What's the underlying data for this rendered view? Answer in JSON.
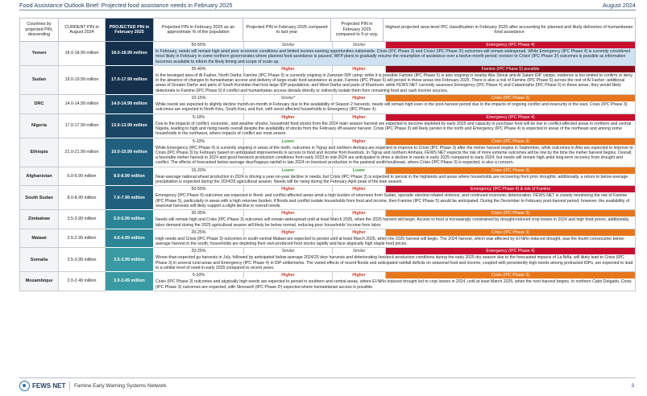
{
  "header": {
    "title": "Food Assistance Outlook Brief: Projected food assistance needs in February 2025",
    "date": "August 2024"
  },
  "columns": [
    "Countries by projected PIN, descending",
    "CURRENT PIN in August 2024",
    "PROJECTED PIN in February 2025",
    "Projected PIN in February 2025 as an approximate % of the population",
    "Projected PIN in February 2025 compared to last year",
    "Projected PIN in February 2025 compared to 5-yr avg.",
    "Highest projected area-level IPC classification in February 2025 after accounting for planned and likely deliveries of humanitarian food assistance"
  ],
  "rows": [
    {
      "country": "Yemen",
      "current": "18.0-18.99 million",
      "projected": "18.0-18.99 million",
      "pct": "50-55%",
      "vs_last": "Similar",
      "vs_last_class": "similar",
      "vs_5yr": "Similar",
      "vs_5yr_class": "similar",
      "ipc": "Emergency (IPC Phase 4)",
      "ipc_class": "ipc-e",
      "highlight": true,
      "narrative": "In February, needs will remain high amid poor economic conditions and limited income-earning opportunities nationwide. Crisis (IPC Phase 3) and Crisis! (IPC Phase 3!) outcomes will remain widespread. While Emergency (IPC Phase 4) is currently considered most likely in February in some northern governorates where planned food assistance is paused, WFP plans to gradually resume the resumption of assistance over a twelve-month period; revision to Crisis! (IPC Phase 3!) outcomes is possible as information becomes available to inform the likely timing and scope of scale-up."
    },
    {
      "country": "Sudan",
      "current": "19.0-19.99 million",
      "projected": "17.0-17.99 million",
      "pct": "35-40%",
      "vs_last": "Higher",
      "vs_last_class": "higher",
      "vs_5yr": "Higher",
      "vs_5yr_class": "higher",
      "ipc": "Famine (IPC Phase 5) possible",
      "ipc_class": "ipc-f",
      "highlight": false,
      "narrative": "In the besieged area of Al Fasher, North Darfur, Famine (IPC Phase 5) is currently ongoing in Zamzam IDP camp; while it is possible Famine (IPC Phase 5) is also ongoing in nearby Abu Shouk and Al Salam IDP camps, evidence is too limited to confirm or deny. In the absence of changes to humanitarian access and delivery of large-scale food assistance at scale, Famine (IPC Phase 5) will persist in these areas into February 2025. There is also a risk of Famine (IPC Phase 5) across the rest of Al Fasher; additional areas of Greater Darfur and parts of South Kordofan that host large IDP populations; and West Darfur and parts of Khartoum; while FEWS NET currently assesses Emergency (IPC Phase 4) and Catastrophe (IPC Phase 5) in these areas, they would likely deteriorate to Famine (IPC Phase 5) if conflict and humanitarian access denials directly or indirectly isolate them from remaining food and cash income sources."
    },
    {
      "country": "DRC",
      "current": "14.0-14.99 million",
      "projected": "14.0-14.99 million",
      "pct": "10-15%",
      "vs_last": "Similar*",
      "vs_last_class": "similar",
      "vs_5yr": "Higher",
      "vs_5yr_class": "higher",
      "ipc": "Crisis (IPC Phase 3)",
      "ipc_class": "ipc-c",
      "highlight": false,
      "narrative": "While needs are expected to slightly decline month-on-month in February due to the availability of Season 2 harvests, needs will remain high even in the post-harvest period due to the impacts of ongoing conflict and insecurity in the east. Crisis (IPC Phase 3) outcomes are expected in North Kivu, South Kivu, and Ituri, with worst affected households in Emergency (IPC Phase 4)."
    },
    {
      "country": "Nigeria",
      "current": "17.0-17.99 million",
      "projected": "13.0-13.99 million",
      "pct": "5-10%",
      "vs_last": "Higher",
      "vs_last_class": "higher",
      "vs_5yr": "Higher",
      "vs_5yr_class": "higher",
      "ipc": "Emergency (IPC Phase 4)",
      "ipc_class": "ipc-e",
      "highlight": false,
      "narrative": "Due to the impacts of conflict, economic, and weather shocks, household food stocks from the 2024 main season harvest are expected to become depleted by early 2025 and capacity to purchase food will be low in conflict-affected areas in northern and central Nigeria, leading to high and rising needs overall despite the availability of stocks from the February off-season harvest. Crisis (IPC Phase 3) will likely persist in the north and Emergency (IPC Phase 4) is expected in areas of the northeast and among some households in the northwest, where impacts of conflict are most severe."
    },
    {
      "country": "Ethiopia",
      "current": "21.0-21.99 million",
      "projected": "10.0-10.99 million",
      "pct": "5-10%",
      "vs_last": "Lower",
      "vs_last_class": "lower",
      "vs_5yr": "Higher",
      "vs_5yr_class": "higher",
      "ipc": "Crisis (IPC Phase 3)",
      "ipc_class": "ipc-c",
      "highlight": false,
      "narrative": "While Emergency (IPC Phase 4) is currently ongoing in areas of the north, outcomes in Tigray and northern Amhara are expected to improve to Crisis (IPC Phase 3) after the meher harvest begins in September, while outcomes in Afar are expected to improve to Crisis (IPC Phase 3) by February based on anticipated improvements in access to food and income from livestock. In Tigray and northern Amhara, FEWS NET expects the risk of more extreme outcomes will be low by the time the meher harvest begins. Overall, a favorable meher harvest in 2024 and good livestock production conditions from early 2023 to mid-2024 are anticipated to drive a decline in needs in early 2025 compared to early 2024, but needs will remain high amid long-term recovery from drought and conflict. The effects of forecasted below-average deyr/hageya rainfall in late 2024 on livestock production in the pastoral south/southeast, where Crisis (IPC Phase 3) is expected, is also a concern."
    },
    {
      "country": "Afghanistan",
      "current": "6.0-6.99 million",
      "projected": "8.0-8.99 million",
      "pct": "15-20%",
      "vs_last": "Lower",
      "vs_last_class": "lower",
      "vs_5yr": "Lower",
      "vs_5yr_class": "lower",
      "ipc": "Crisis (IPC Phase 3)",
      "ipc_class": "ipc-c",
      "highlight": false,
      "narrative": "Near-average national wheat production in 2024 is driving a year-on-year decline in needs, but Crisis (IPC Phase 3) is expected to persist in the highlands and areas where households are recovering from prior droughts; additionally, a return to below-average precipitation is expected during the 2024/25 agricultural season. Needs will be rising during the February-April peak of the lean season."
    },
    {
      "country": "South Sudan",
      "current": "8.0-8.99 million",
      "projected": "7.0-7.99 million",
      "pct": "50-55%",
      "vs_last": "Higher",
      "vs_last_class": "higher",
      "vs_5yr": "Higher",
      "vs_5yr_class": "higher",
      "ipc": "Emergency (IPC Phase 4) & risk of Famine",
      "ipc_class": "ipc-e",
      "highlight": false,
      "narrative": "Emergency (IPC Phase 4) outcomes are expected in flood- and conflict-affected areas amid a high burden of returnees from Sudan, sporadic election-related violence, and continued economic deterioration. FEWS NET is closely monitoring the risk of Famine (IPC Phase 5), particularly in areas with a high returnee burden; if floods and conflict isolate households from food and income, then Famine (IPC Phase 5) would be anticipated. During the December to February post-harvest period, however, the availability of seasonal harvests will likely support a slight decline in overall needs."
    },
    {
      "country": "Zimbabwe",
      "current": "3.5-3.99 million",
      "projected": "5.0-5.99 million",
      "pct": "30-35%",
      "vs_last": "Higher",
      "vs_last_class": "higher",
      "vs_5yr": "Higher",
      "vs_5yr_class": "higher",
      "ipc": "Crisis (IPC Phase 3)",
      "ipc_class": "ipc-c",
      "highlight": false,
      "narrative": "Needs will remain high and Crisis (IPC Phase 3) outcomes will remain widespread until at least March 2025, when the 2025 harvest will begin. Access to food is increasingly constrained by drought-induced crop losses in 2024 and high food prices; additionally, labor demand during the 2025 agricultural season will likely be below normal, reducing poor households' income from labor."
    },
    {
      "country": "Malawi",
      "current": "2.5-2.99 million",
      "projected": "4.0-4.99 million",
      "pct": "20-25%",
      "vs_last": "Higher",
      "vs_last_class": "higher",
      "vs_5yr": "Higher",
      "vs_5yr_class": "higher",
      "ipc": "Crisis (IPC Phase 3)",
      "ipc_class": "ipc-c",
      "highlight": false,
      "narrative": "High needs and Crisis (IPC Phase 3) outcomes in south-central Malawi are expected to persist until at least March 2025, when the 2025 harvest will begin. The 2024 harvest, which was affected by El Niño-induced drought, was the fourth consecutive below-average harvest in the south; households are depleting their own-produced food stocks rapidly and face atypically high staple food prices."
    },
    {
      "country": "Somalia",
      "current": "3.5-3.99 million",
      "projected": "3.5-3.99 million",
      "pct": "20-25%",
      "vs_last": "Similar",
      "vs_last_class": "similar",
      "vs_5yr": "Similar",
      "vs_5yr_class": "similar",
      "ipc": "Emergency (IPC Phase 4)",
      "ipc_class": "ipc-e",
      "highlight": false,
      "narrative": "Worse-than-expected gu harvests in July, followed by anticipated below-average 2024/25 deyr harvests and deteriorating livestock production conditions during the early 2025 dry season due to the forecasted impacts of La Niña, will likely lead to Crisis (IPC Phase 3) in several rural areas and Emergency (IPC Phase 4) in IDP settlements. The varied effects of recent floods and anticipated rainfall deficits on seasonal food and income, coupled with persistently high needs among protracted IDPs, are expected to lead to a similar level of need in early 2025 compared to recent years."
    },
    {
      "country": "Mozambique",
      "current": "2.0-2.49 million",
      "projected": "3.0-3.49 million",
      "pct": "5-10%",
      "vs_last": "Higher",
      "vs_last_class": "higher",
      "vs_5yr": "Higher",
      "vs_5yr_class": "higher",
      "ipc": "Crisis (IPC Phase 3)",
      "ipc_class": "ipc-c",
      "highlight": false,
      "narrative": "Crisis (IPC Phase 3) outcomes and atypically high needs are expected to persist in southern and central areas, where El-Niño-induced drought led to crop losses in 2024, until at least March 2025, when the next harvest begins. In northern Cabo Delgado, Crisis (IPC Phase 3) outcomes are expected, with Stressed! (IPC Phase 2!) expected where humanitarian access is possible."
    }
  ],
  "footer": {
    "logo": "FEWS NET",
    "org_name": "Famine Early Warning Systems Network",
    "page": "3"
  }
}
